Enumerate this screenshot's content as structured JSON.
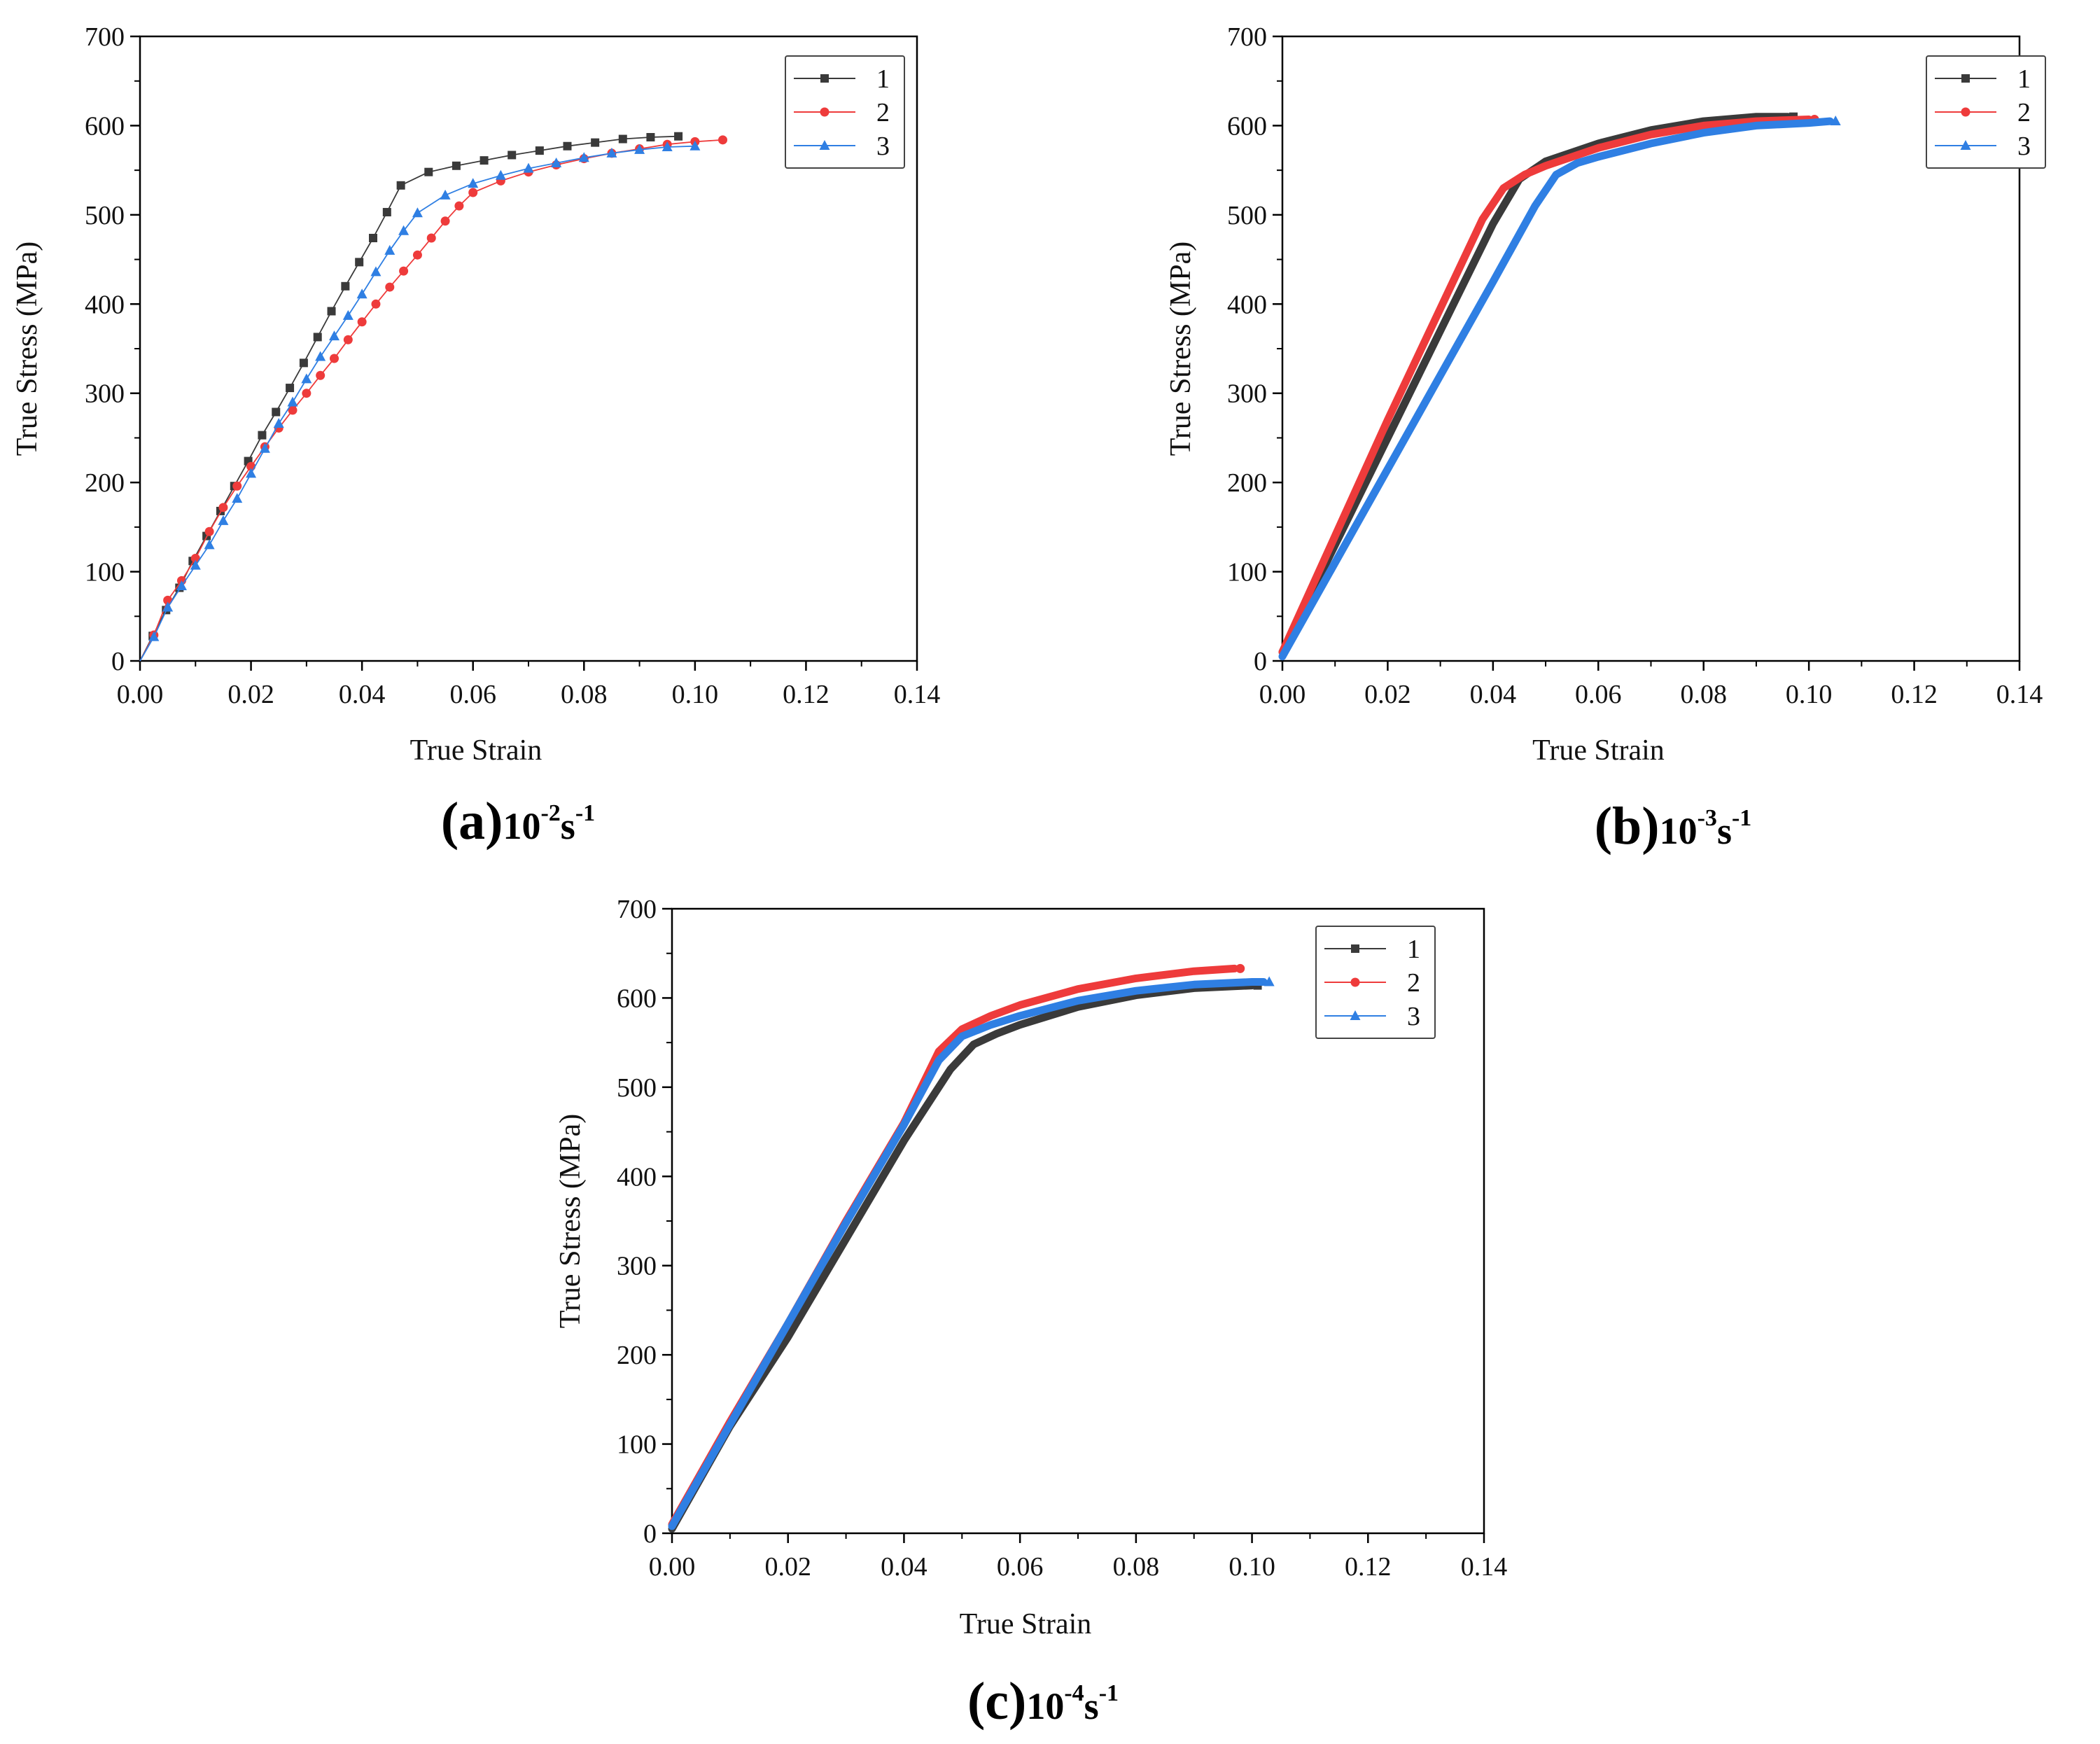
{
  "colors": {
    "s1": "#3a3a3a",
    "s2": "#ee3b3b",
    "s3": "#2f7fe3",
    "axis": "#000000"
  },
  "chart_data": [
    {
      "id": "a",
      "type": "line",
      "style": "markers",
      "title": "(a)10-2s-1",
      "caption": {
        "letter": "(a)",
        "base": "10",
        "exp1": "-2",
        "unit": "s",
        "exp2": "-1"
      },
      "xlabel": "True Strain",
      "ylabel": "True Stress (MPa)",
      "xlim": [
        0,
        0.14
      ],
      "ylim": [
        0,
        700
      ],
      "xticks": [
        "0.00",
        "0.02",
        "0.04",
        "0.06",
        "0.08",
        "0.10",
        "0.12",
        "0.14"
      ],
      "yticks": [
        "0",
        "100",
        "200",
        "300",
        "400",
        "500",
        "600",
        "700"
      ],
      "legend": [
        "1",
        "2",
        "3"
      ],
      "series": [
        {
          "name": "1",
          "marker": "square",
          "x": [
            0,
            0.0023,
            0.0047,
            0.0071,
            0.0095,
            0.012,
            0.0145,
            0.017,
            0.0195,
            0.022,
            0.0245,
            0.027,
            0.0295,
            0.032,
            0.0345,
            0.037,
            0.0395,
            0.042,
            0.0445,
            0.047,
            0.052,
            0.057,
            0.062,
            0.067,
            0.072,
            0.077,
            0.082,
            0.087,
            0.092,
            0.097
          ],
          "y": [
            0,
            28,
            57,
            82,
            112,
            140,
            168,
            196,
            224,
            253,
            279,
            306,
            334,
            363,
            392,
            420,
            447,
            474,
            503,
            533,
            548,
            555,
            561,
            567,
            572,
            577,
            581,
            585,
            587,
            588
          ]
        },
        {
          "name": "2",
          "marker": "circle",
          "x": [
            0,
            0.0025,
            0.005,
            0.0075,
            0.01,
            0.0125,
            0.015,
            0.0175,
            0.02,
            0.0225,
            0.025,
            0.0275,
            0.03,
            0.0325,
            0.035,
            0.0375,
            0.04,
            0.0425,
            0.045,
            0.0475,
            0.05,
            0.0525,
            0.055,
            0.0575,
            0.06,
            0.065,
            0.07,
            0.075,
            0.08,
            0.085,
            0.09,
            0.095,
            0.1,
            0.105
          ],
          "y": [
            0,
            29,
            68,
            90,
            115,
            145,
            172,
            196,
            218,
            240,
            261,
            281,
            300,
            320,
            339,
            360,
            380,
            400,
            419,
            437,
            455,
            474,
            493,
            510,
            525,
            538,
            548,
            556,
            563,
            569,
            574,
            579,
            582,
            584
          ]
        },
        {
          "name": "3",
          "marker": "triangle",
          "x": [
            0,
            0.0025,
            0.005,
            0.0075,
            0.01,
            0.0125,
            0.015,
            0.0175,
            0.02,
            0.0225,
            0.025,
            0.0275,
            0.03,
            0.0325,
            0.035,
            0.0375,
            0.04,
            0.0425,
            0.045,
            0.0475,
            0.05,
            0.055,
            0.06,
            0.065,
            0.07,
            0.075,
            0.08,
            0.085,
            0.09,
            0.095,
            0.1
          ],
          "y": [
            0,
            27,
            60,
            84,
            107,
            130,
            157,
            182,
            210,
            238,
            266,
            290,
            316,
            341,
            364,
            387,
            411,
            436,
            460,
            482,
            502,
            522,
            535,
            544,
            552,
            558,
            564,
            569,
            573,
            576,
            577
          ]
        }
      ]
    },
    {
      "id": "b",
      "type": "line",
      "style": "thick",
      "title": "(b)10-3s-1",
      "caption": {
        "letter": "(b)",
        "base": "10",
        "exp1": "-3",
        "unit": "s",
        "exp2": "-1"
      },
      "xlabel": "True Strain",
      "ylabel": "True Stress (MPa)",
      "xlim": [
        0,
        0.14
      ],
      "ylim": [
        0,
        700
      ],
      "xticks": [
        "0.00",
        "0.02",
        "0.04",
        "0.06",
        "0.08",
        "0.10",
        "0.12",
        "0.14"
      ],
      "yticks": [
        "0",
        "100",
        "200",
        "300",
        "400",
        "500",
        "600",
        "700"
      ],
      "legend": [
        "1",
        "2",
        "3"
      ],
      "series": [
        {
          "name": "1",
          "marker": "square",
          "x": [
            0,
            0.01,
            0.02,
            0.03,
            0.04,
            0.045,
            0.05,
            0.06,
            0.07,
            0.08,
            0.09,
            0.096
          ],
          "y": [
            10,
            130,
            250,
            370,
            490,
            540,
            560,
            580,
            595,
            605,
            610,
            610
          ]
        },
        {
          "name": "2",
          "marker": "circle",
          "x": [
            0,
            0.01,
            0.02,
            0.03,
            0.038,
            0.042,
            0.046,
            0.05,
            0.06,
            0.07,
            0.08,
            0.09,
            0.1
          ],
          "y": [
            10,
            140,
            270,
            395,
            495,
            530,
            545,
            555,
            575,
            590,
            600,
            605,
            607
          ]
        },
        {
          "name": "3",
          "marker": "triangle",
          "x": [
            0,
            0.01,
            0.02,
            0.03,
            0.04,
            0.048,
            0.052,
            0.056,
            0.06,
            0.07,
            0.08,
            0.09,
            0.1,
            0.104
          ],
          "y": [
            5,
            110,
            215,
            320,
            425,
            510,
            545,
            558,
            565,
            580,
            592,
            600,
            603,
            605
          ]
        }
      ]
    },
    {
      "id": "c",
      "type": "line",
      "style": "thick",
      "title": "(c)10-4s-1",
      "caption": {
        "letter": "(c)",
        "base": "10",
        "exp1": "-4",
        "unit": "s",
        "exp2": "-1"
      },
      "xlabel": "True Strain",
      "ylabel": "True Stress (MPa)",
      "xlim": [
        0,
        0.14
      ],
      "ylim": [
        0,
        700
      ],
      "xticks": [
        "0.00",
        "0.02",
        "0.04",
        "0.06",
        "0.08",
        "0.10",
        "0.12",
        "0.14"
      ],
      "yticks": [
        "0",
        "100",
        "200",
        "300",
        "400",
        "500",
        "600",
        "700"
      ],
      "legend": [
        "1",
        "2",
        "3"
      ],
      "series": [
        {
          "name": "1",
          "marker": "square",
          "x": [
            0,
            0.01,
            0.02,
            0.03,
            0.04,
            0.048,
            0.052,
            0.056,
            0.06,
            0.07,
            0.08,
            0.09,
            0.1
          ],
          "y": [
            5,
            120,
            220,
            330,
            440,
            520,
            548,
            560,
            570,
            590,
            603,
            611,
            614
          ]
        },
        {
          "name": "2",
          "marker": "circle",
          "x": [
            0,
            0.01,
            0.02,
            0.03,
            0.04,
            0.046,
            0.05,
            0.055,
            0.06,
            0.07,
            0.08,
            0.09,
            0.097
          ],
          "y": [
            10,
            125,
            235,
            350,
            460,
            540,
            565,
            580,
            592,
            610,
            622,
            630,
            633
          ]
        },
        {
          "name": "3",
          "marker": "triangle",
          "x": [
            0,
            0.01,
            0.02,
            0.03,
            0.04,
            0.046,
            0.05,
            0.055,
            0.06,
            0.07,
            0.08,
            0.09,
            0.1,
            0.102
          ],
          "y": [
            8,
            122,
            235,
            348,
            458,
            530,
            557,
            570,
            580,
            597,
            608,
            615,
            618,
            618
          ]
        }
      ]
    }
  ]
}
